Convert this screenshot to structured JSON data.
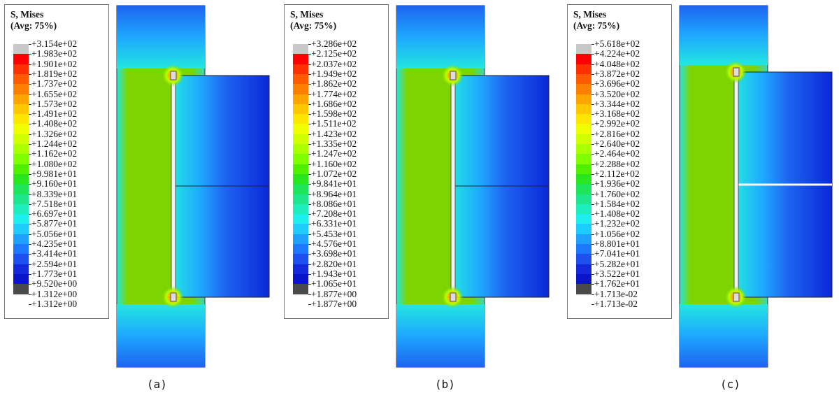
{
  "panels": [
    {
      "id": "a",
      "caption": "(a)",
      "legend_title_line1": "S, Mises",
      "legend_title_line2": "(Avg: 75%)",
      "legend_labels": [
        "+3.154e+02",
        "+1.983e+02",
        "+1.901e+02",
        "+1.819e+02",
        "+1.737e+02",
        "+1.655e+02",
        "+1.573e+02",
        "+1.491e+02",
        "+1.408e+02",
        "+1.326e+02",
        "+1.244e+02",
        "+1.162e+02",
        "+1.080e+02",
        "+9.981e+01",
        "+9.160e+01",
        "+8.339e+01",
        "+7.518e+01",
        "+6.697e+01",
        "+5.877e+01",
        "+5.056e+01",
        "+4.235e+01",
        "+3.414e+01",
        "+2.594e+01",
        "+1.773e+01",
        "+9.520e+00",
        "+1.312e+00",
        "+1.312e+00"
      ]
    },
    {
      "id": "b",
      "caption": "(b)",
      "legend_title_line1": "S, Mises",
      "legend_title_line2": "(Avg: 75%)",
      "legend_labels": [
        "+3.286e+02",
        "+2.125e+02",
        "+2.037e+02",
        "+1.949e+02",
        "+1.862e+02",
        "+1.774e+02",
        "+1.686e+02",
        "+1.598e+02",
        "+1.511e+02",
        "+1.423e+02",
        "+1.335e+02",
        "+1.247e+02",
        "+1.160e+02",
        "+1.072e+02",
        "+9.841e+01",
        "+8.964e+01",
        "+8.086e+01",
        "+7.208e+01",
        "+6.331e+01",
        "+5.453e+01",
        "+4.576e+01",
        "+3.698e+01",
        "+2.820e+01",
        "+1.943e+01",
        "+1.065e+01",
        "+1.877e+00",
        "+1.877e+00"
      ]
    },
    {
      "id": "c",
      "caption": "(c)",
      "legend_title_line1": "S, Mises",
      "legend_title_line2": "(Avg: 75%)",
      "legend_labels": [
        "+5.618e+02",
        "+4.224e+02",
        "+4.048e+02",
        "+3.872e+02",
        "+3.696e+02",
        "+3.520e+02",
        "+3.344e+02",
        "+3.168e+02",
        "+2.992e+02",
        "+2.816e+02",
        "+2.640e+02",
        "+2.464e+02",
        "+2.288e+02",
        "+2.112e+02",
        "+1.936e+02",
        "+1.760e+02",
        "+1.584e+02",
        "+1.408e+02",
        "+1.232e+02",
        "+1.056e+02",
        "+8.801e+01",
        "+7.041e+01",
        "+5.282e+01",
        "+3.522e+01",
        "+1.762e+01",
        "+1.713e-02",
        "+1.713e-02"
      ]
    }
  ],
  "legend_colors": [
    "#c8c8c8",
    "#ff0000",
    "#ff3000",
    "#ff5a00",
    "#ff8000",
    "#ffa500",
    "#ffc800",
    "#ffe600",
    "#f0ff00",
    "#d2ff00",
    "#aaff00",
    "#7fff00",
    "#50f000",
    "#2ae61e",
    "#1ee65a",
    "#1ee68c",
    "#1eeebe",
    "#1eeeee",
    "#1ecdff",
    "#1ea0ff",
    "#1e78ff",
    "#1e50f0",
    "#1428dc",
    "#0a14c8",
    "#4a4a4a"
  ],
  "field_colors": {
    "plate": "#7ed400",
    "plate_edge": "#38d6c0",
    "low": "#0a28d8",
    "mid_low": "#1e64f0",
    "mid": "#1ea8ff",
    "cyan": "#22e6e0",
    "hot": "#ff2000"
  }
}
